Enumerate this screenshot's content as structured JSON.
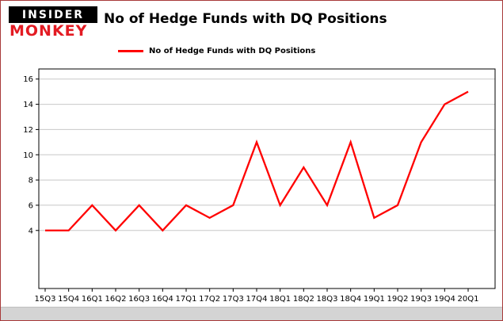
{
  "header": {
    "logo_top": "INSIDER",
    "logo_bottom": "MONKEY",
    "title": "No of Hedge Funds with DQ Positions"
  },
  "legend": {
    "label": "No of Hedge Funds with DQ Positions",
    "color": "#ff0000"
  },
  "chart_data": {
    "type": "line",
    "title": "No of Hedge Funds with DQ Positions",
    "categories": [
      "15Q3",
      "15Q4",
      "16Q1",
      "16Q2",
      "16Q3",
      "16Q4",
      "17Q1",
      "17Q2",
      "17Q3",
      "17Q4",
      "18Q1",
      "18Q2",
      "18Q3",
      "18Q4",
      "19Q1",
      "19Q2",
      "19Q3",
      "19Q4",
      "20Q1"
    ],
    "series": [
      {
        "name": "No of Hedge Funds with DQ Positions",
        "color": "#ff0000",
        "values": [
          4,
          4,
          6,
          4,
          6,
          4,
          6,
          5,
          6,
          11,
          6,
          9,
          6,
          11,
          5,
          6,
          11,
          14,
          15
        ]
      }
    ],
    "xlabel": "",
    "ylabel": "",
    "yticks": [
      4,
      6,
      8,
      10,
      12,
      14,
      16
    ],
    "ylim": [
      -0.6,
      16.8
    ],
    "grid": true,
    "grid_color": "#c8c8c8",
    "axis_color": "#000000",
    "tick_label_color": "#000000",
    "background": "#ffffff",
    "legend_position": "top-left"
  }
}
